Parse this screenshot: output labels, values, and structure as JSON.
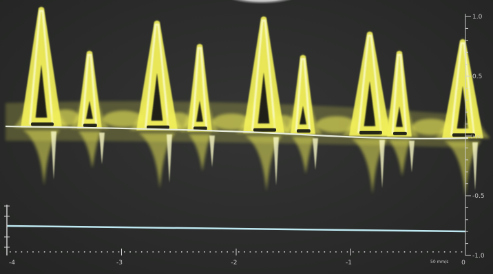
{
  "scale": {
    "unit": "[m/s]",
    "labels": [
      "1.0",
      "0.5",
      "-0.5",
      "-1.0"
    ],
    "values": [
      1.0,
      0.5,
      -0.5,
      -1.0
    ]
  },
  "time_axis": {
    "labels": [
      "-4",
      "-3",
      "-2",
      "-1",
      "0"
    ],
    "values": [
      -4,
      -3,
      -2,
      -1,
      0
    ],
    "sweep_label": "50 mm/s"
  },
  "colors": {
    "background": "#2b2c2b",
    "signal": "#f2f05a",
    "signal_core": "#fbfbc8",
    "baseline": "#e7ecdd",
    "ecg_trace": "#bfe9f2",
    "axis": "#d0d0d0"
  }
}
